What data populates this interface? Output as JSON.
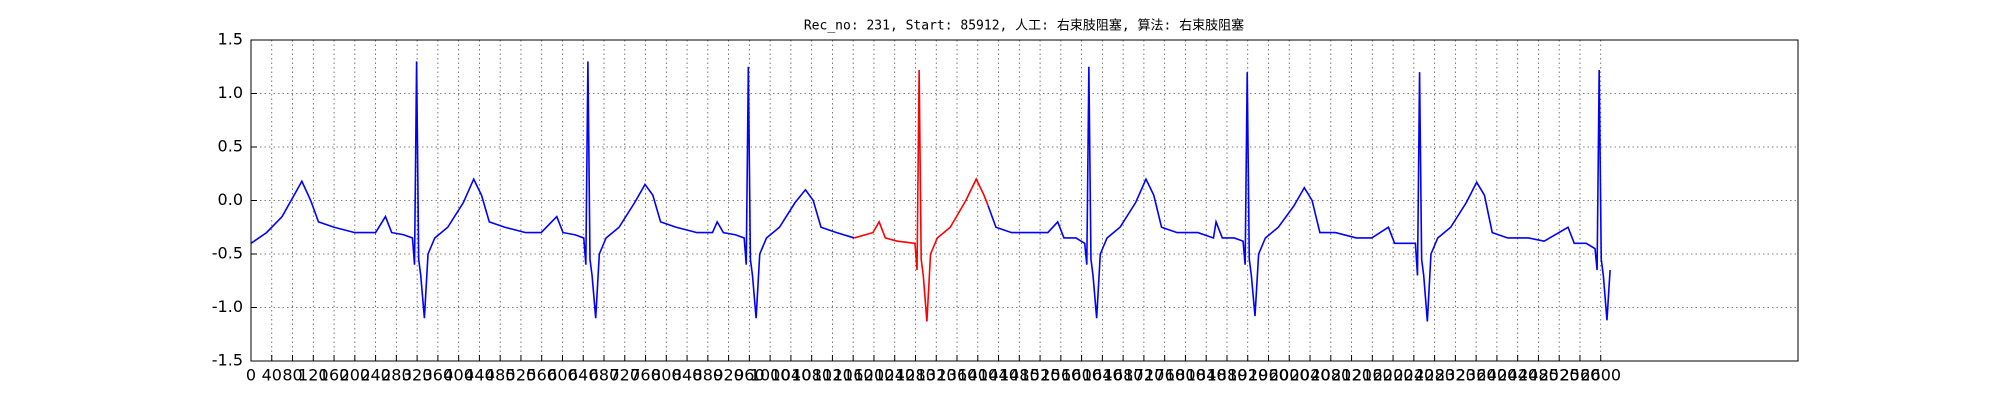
{
  "chart_data": {
    "type": "line",
    "title": "Rec_no: 231, Start: 85912, 人工: 右束肢阻塞, 算法: 右束肢阻塞",
    "xlim": [
      0,
      2980
    ],
    "ylim": [
      -1.5,
      1.5
    ],
    "xticks": [
      0,
      40,
      80,
      120,
      160,
      200,
      240,
      280,
      320,
      360,
      400,
      440,
      480,
      520,
      560,
      600,
      640,
      680,
      720,
      760,
      800,
      840,
      880,
      920,
      960,
      1000,
      1040,
      1080,
      1120,
      1160,
      1200,
      1240,
      1280,
      1320,
      1360,
      1400,
      1440,
      1480,
      1520,
      1560,
      1600,
      1640,
      1680,
      1720,
      1760,
      1800,
      1840,
      1880,
      1920,
      1960,
      2000,
      2040,
      2080,
      2120,
      2160,
      2200,
      2240,
      2280,
      2320,
      2360,
      2400,
      2440,
      2480,
      2520,
      2560,
      2600
    ],
    "yticks": [
      -1.5,
      {
        "value": -1.0,
        "label": "-1.0"
      },
      -0.5,
      {
        "value": 0.0,
        "label": "0.0"
      },
      0.5,
      {
        "value": 1.0,
        "label": "1.0"
      },
      1.5
    ],
    "grid": true,
    "series": [
      {
        "color": "#0000ff",
        "x": [
          0,
          30,
          60,
          98,
          115,
          130,
          160,
          200,
          240,
          259,
          271,
          294,
          311,
          315,
          319,
          323,
          327,
          334,
          341,
          354,
          379,
          409,
          429,
          444,
          459,
          489,
          529,
          559,
          589,
          601,
          624,
          641,
          645,
          649,
          653,
          657,
          664,
          671,
          684,
          709,
          739,
          759,
          774,
          789,
          819,
          859,
          889,
          898,
          910,
          933,
          950,
          954,
          958,
          962,
          966,
          973,
          980,
          993,
          1018,
          1048,
          1068,
          1083,
          1098,
          1128,
          1162
        ],
        "values": [
          -0.4,
          -0.3,
          -0.15,
          0.18,
          0.0,
          -0.2,
          -0.25,
          -0.3,
          -0.3,
          -0.15,
          -0.3,
          -0.32,
          -0.35,
          -0.6,
          1.3,
          -0.55,
          -0.7,
          -1.1,
          -0.5,
          -0.35,
          -0.25,
          -0.02,
          0.2,
          0.05,
          -0.2,
          -0.25,
          -0.3,
          -0.3,
          -0.15,
          -0.3,
          -0.32,
          -0.35,
          -0.6,
          1.3,
          -0.55,
          -0.7,
          -1.1,
          -0.5,
          -0.35,
          -0.25,
          -0.02,
          0.15,
          0.05,
          -0.2,
          -0.25,
          -0.3,
          -0.3,
          -0.2,
          -0.3,
          -0.32,
          -0.35,
          -0.6,
          1.25,
          -0.55,
          -0.7,
          -1.1,
          -0.5,
          -0.35,
          -0.25,
          -0.02,
          0.1,
          0.0,
          -0.25,
          -0.3,
          -0.35
        ]
      },
      {
        "color": "#ff0000",
        "x": [
          1162,
          1198,
          1210,
          1222,
          1245,
          1279,
          1283,
          1287,
          1291,
          1295,
          1302,
          1309,
          1322,
          1347,
          1377,
          1397,
          1412,
          1420
        ],
        "values": [
          -0.35,
          -0.3,
          -0.2,
          -0.35,
          -0.38,
          -0.4,
          -0.65,
          1.22,
          -0.55,
          -0.7,
          -1.13,
          -0.5,
          -0.35,
          -0.25,
          0.0,
          0.2,
          0.05,
          -0.05
        ]
      },
      {
        "color": "#0000ff",
        "x": [
          1420,
          1435,
          1465,
          1505,
          1535,
          1554,
          1566,
          1589,
          1606,
          1610,
          1614,
          1618,
          1622,
          1629,
          1636,
          1649,
          1674,
          1704,
          1724,
          1739,
          1754,
          1784,
          1824,
          1854,
          1859,
          1871,
          1894,
          1911,
          1915,
          1919,
          1923,
          1927,
          1934,
          1941,
          1954,
          1979,
          2009,
          2029,
          2044,
          2059,
          2089,
          2129,
          2159,
          2191,
          2203,
          2226,
          2243,
          2247,
          2251,
          2255,
          2259,
          2266,
          2273,
          2286,
          2311,
          2341,
          2361,
          2376,
          2391,
          2421,
          2461,
          2491,
          2537,
          2549,
          2572,
          2589,
          2593,
          2597,
          2601,
          2605,
          2612,
          2618
        ],
        "values": [
          -0.05,
          -0.25,
          -0.3,
          -0.3,
          -0.3,
          -0.2,
          -0.35,
          -0.35,
          -0.4,
          -0.6,
          1.25,
          -0.55,
          -0.7,
          -1.1,
          -0.5,
          -0.35,
          -0.25,
          -0.02,
          0.2,
          0.05,
          -0.25,
          -0.3,
          -0.3,
          -0.35,
          -0.2,
          -0.35,
          -0.35,
          -0.38,
          -0.6,
          1.2,
          -0.55,
          -0.7,
          -1.08,
          -0.5,
          -0.35,
          -0.25,
          -0.05,
          0.12,
          0.0,
          -0.3,
          -0.3,
          -0.35,
          -0.35,
          -0.25,
          -0.4,
          -0.4,
          -0.4,
          -0.7,
          1.2,
          -0.55,
          -0.7,
          -1.13,
          -0.5,
          -0.35,
          -0.25,
          -0.02,
          0.17,
          0.05,
          -0.3,
          -0.35,
          -0.35,
          -0.38,
          -0.25,
          -0.4,
          -0.4,
          -0.45,
          -0.65,
          1.22,
          -0.55,
          -0.7,
          -1.12,
          -0.65
        ]
      }
    ]
  }
}
